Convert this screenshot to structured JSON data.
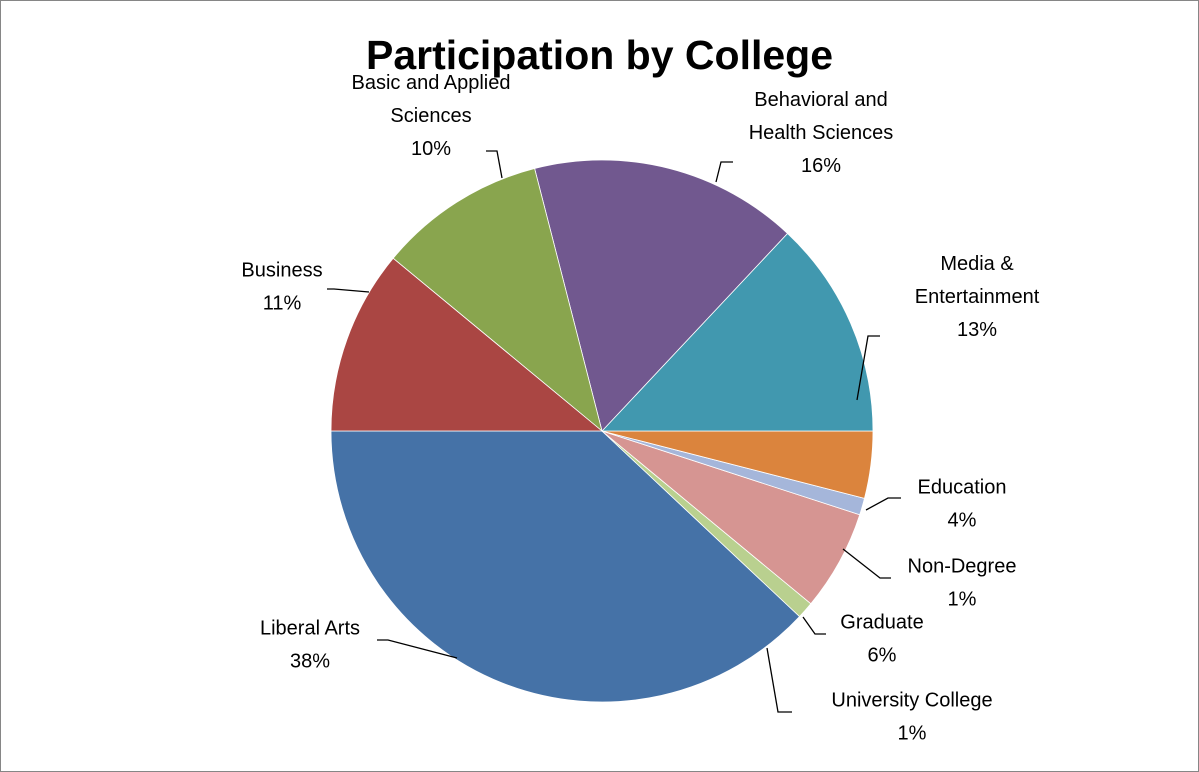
{
  "chart_data": {
    "type": "pie",
    "title": "Participation by College",
    "start_angle_deg": 180,
    "direction": "counterclockwise",
    "slices": [
      {
        "label": [
          "Liberal Arts"
        ],
        "value": 38,
        "display": "38%",
        "color": "#4572A7"
      },
      {
        "label": [
          "University College"
        ],
        "value": 1,
        "display": "1%",
        "color": "#B9D08F"
      },
      {
        "label": [
          "Graduate"
        ],
        "value": 6,
        "display": "6%",
        "color": "#D69592"
      },
      {
        "label": [
          "Non-Degree"
        ],
        "value": 1,
        "display": "1%",
        "color": "#A5B6DA"
      },
      {
        "label": [
          "Education"
        ],
        "value": 4,
        "display": "4%",
        "color": "#DB843D"
      },
      {
        "label": [
          "Media &",
          "Entertainment"
        ],
        "value": 13,
        "display": "13%",
        "color": "#4198AF"
      },
      {
        "label": [
          "Behavioral and",
          "Health Sciences"
        ],
        "value": 16,
        "display": "16%",
        "color": "#71588F"
      },
      {
        "label": [
          "Basic and Applied",
          "Sciences"
        ],
        "value": 10,
        "display": "10%",
        "color": "#89A54E"
      },
      {
        "label": [
          "Business"
        ],
        "value": 11,
        "display": "11%",
        "color": "#AA4643"
      }
    ],
    "legend": "none",
    "data_labels": "outside with leader lines"
  }
}
